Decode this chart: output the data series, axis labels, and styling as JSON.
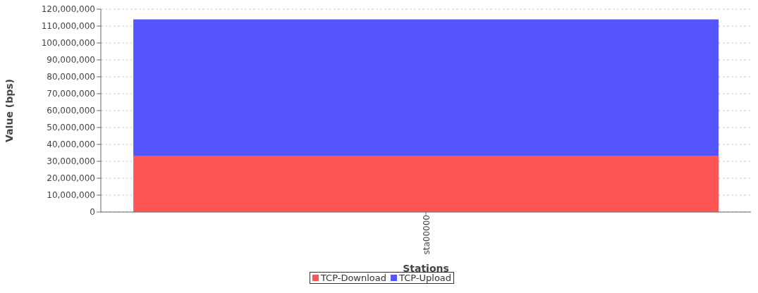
{
  "chart_data": {
    "type": "bar",
    "stacked": true,
    "categories": [
      "sta00000"
    ],
    "xlabel": "Stations",
    "ylabel": "Value (bps)",
    "series": [
      {
        "name": "TCP-Download",
        "color": "#ff5555",
        "values": [
          33000000
        ]
      },
      {
        "name": "TCP-Upload",
        "color": "#5555ff",
        "values": [
          81000000
        ]
      }
    ],
    "ylim": [
      0,
      120000000
    ],
    "yticks": [
      0,
      {
        "value": 10000000,
        "label": "10,000,000"
      },
      {
        "value": 20000000,
        "label": "20,000,000"
      },
      {
        "value": 30000000,
        "label": "30,000,000"
      },
      {
        "value": 40000000,
        "label": "40,000,000"
      },
      {
        "value": 50000000,
        "label": "50,000,000"
      },
      {
        "value": 60000000,
        "label": "60,000,000"
      },
      {
        "value": 70000000,
        "label": "70,000,000"
      },
      {
        "value": 80000000,
        "label": "80,000,000"
      },
      {
        "value": 90000000,
        "label": "90,000,000"
      },
      {
        "value": 100000000,
        "label": "100,000,000"
      },
      {
        "value": 110000000,
        "label": "110,000,000"
      },
      {
        "value": 120000000,
        "label": "120,000,000"
      }
    ],
    "grid": "y",
    "legend": "bottom"
  }
}
